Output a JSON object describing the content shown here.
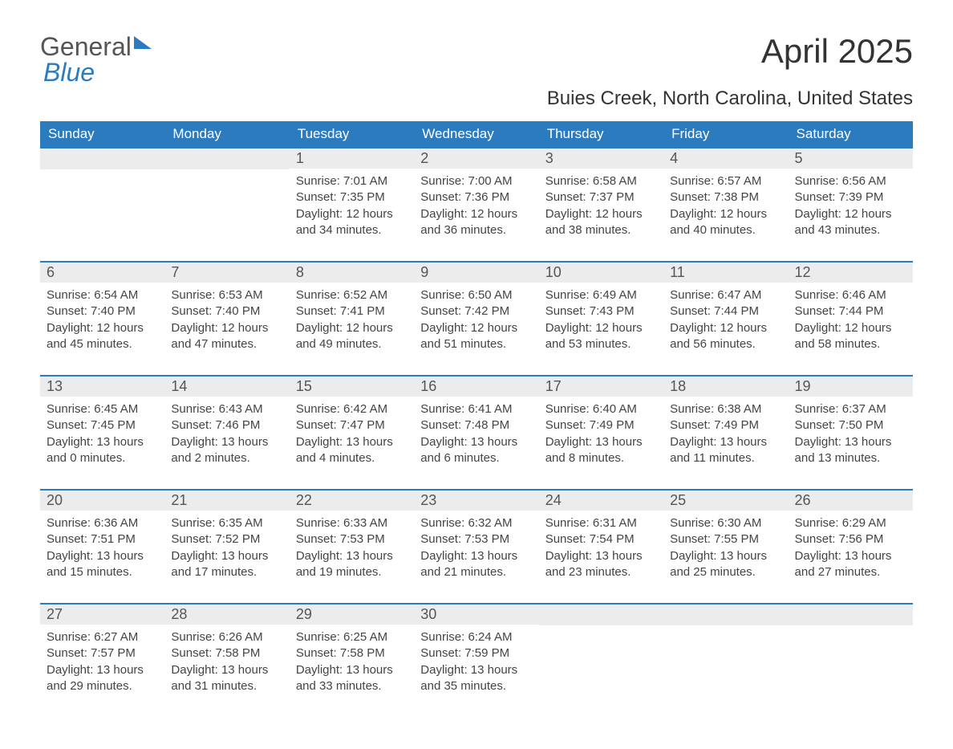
{
  "logo": {
    "text_general": "General",
    "text_blue": "Blue"
  },
  "title": "April 2025",
  "subtitle": "Buies Creek, North Carolina, United States",
  "weekday_headers": [
    "Sunday",
    "Monday",
    "Tuesday",
    "Wednesday",
    "Thursday",
    "Friday",
    "Saturday"
  ],
  "colors": {
    "header_bg": "#2d7bbf",
    "header_text": "#ffffff",
    "daynum_bg": "#ececec",
    "daynum_text": "#555555",
    "content_text": "#444444",
    "border": "#2d7bbf"
  },
  "weeks": [
    [
      {
        "day": "",
        "sunrise": "",
        "sunset": "",
        "daylight": ""
      },
      {
        "day": "",
        "sunrise": "",
        "sunset": "",
        "daylight": ""
      },
      {
        "day": "1",
        "sunrise": "Sunrise: 7:01 AM",
        "sunset": "Sunset: 7:35 PM",
        "daylight": "Daylight: 12 hours and 34 minutes."
      },
      {
        "day": "2",
        "sunrise": "Sunrise: 7:00 AM",
        "sunset": "Sunset: 7:36 PM",
        "daylight": "Daylight: 12 hours and 36 minutes."
      },
      {
        "day": "3",
        "sunrise": "Sunrise: 6:58 AM",
        "sunset": "Sunset: 7:37 PM",
        "daylight": "Daylight: 12 hours and 38 minutes."
      },
      {
        "day": "4",
        "sunrise": "Sunrise: 6:57 AM",
        "sunset": "Sunset: 7:38 PM",
        "daylight": "Daylight: 12 hours and 40 minutes."
      },
      {
        "day": "5",
        "sunrise": "Sunrise: 6:56 AM",
        "sunset": "Sunset: 7:39 PM",
        "daylight": "Daylight: 12 hours and 43 minutes."
      }
    ],
    [
      {
        "day": "6",
        "sunrise": "Sunrise: 6:54 AM",
        "sunset": "Sunset: 7:40 PM",
        "daylight": "Daylight: 12 hours and 45 minutes."
      },
      {
        "day": "7",
        "sunrise": "Sunrise: 6:53 AM",
        "sunset": "Sunset: 7:40 PM",
        "daylight": "Daylight: 12 hours and 47 minutes."
      },
      {
        "day": "8",
        "sunrise": "Sunrise: 6:52 AM",
        "sunset": "Sunset: 7:41 PM",
        "daylight": "Daylight: 12 hours and 49 minutes."
      },
      {
        "day": "9",
        "sunrise": "Sunrise: 6:50 AM",
        "sunset": "Sunset: 7:42 PM",
        "daylight": "Daylight: 12 hours and 51 minutes."
      },
      {
        "day": "10",
        "sunrise": "Sunrise: 6:49 AM",
        "sunset": "Sunset: 7:43 PM",
        "daylight": "Daylight: 12 hours and 53 minutes."
      },
      {
        "day": "11",
        "sunrise": "Sunrise: 6:47 AM",
        "sunset": "Sunset: 7:44 PM",
        "daylight": "Daylight: 12 hours and 56 minutes."
      },
      {
        "day": "12",
        "sunrise": "Sunrise: 6:46 AM",
        "sunset": "Sunset: 7:44 PM",
        "daylight": "Daylight: 12 hours and 58 minutes."
      }
    ],
    [
      {
        "day": "13",
        "sunrise": "Sunrise: 6:45 AM",
        "sunset": "Sunset: 7:45 PM",
        "daylight": "Daylight: 13 hours and 0 minutes."
      },
      {
        "day": "14",
        "sunrise": "Sunrise: 6:43 AM",
        "sunset": "Sunset: 7:46 PM",
        "daylight": "Daylight: 13 hours and 2 minutes."
      },
      {
        "day": "15",
        "sunrise": "Sunrise: 6:42 AM",
        "sunset": "Sunset: 7:47 PM",
        "daylight": "Daylight: 13 hours and 4 minutes."
      },
      {
        "day": "16",
        "sunrise": "Sunrise: 6:41 AM",
        "sunset": "Sunset: 7:48 PM",
        "daylight": "Daylight: 13 hours and 6 minutes."
      },
      {
        "day": "17",
        "sunrise": "Sunrise: 6:40 AM",
        "sunset": "Sunset: 7:49 PM",
        "daylight": "Daylight: 13 hours and 8 minutes."
      },
      {
        "day": "18",
        "sunrise": "Sunrise: 6:38 AM",
        "sunset": "Sunset: 7:49 PM",
        "daylight": "Daylight: 13 hours and 11 minutes."
      },
      {
        "day": "19",
        "sunrise": "Sunrise: 6:37 AM",
        "sunset": "Sunset: 7:50 PM",
        "daylight": "Daylight: 13 hours and 13 minutes."
      }
    ],
    [
      {
        "day": "20",
        "sunrise": "Sunrise: 6:36 AM",
        "sunset": "Sunset: 7:51 PM",
        "daylight": "Daylight: 13 hours and 15 minutes."
      },
      {
        "day": "21",
        "sunrise": "Sunrise: 6:35 AM",
        "sunset": "Sunset: 7:52 PM",
        "daylight": "Daylight: 13 hours and 17 minutes."
      },
      {
        "day": "22",
        "sunrise": "Sunrise: 6:33 AM",
        "sunset": "Sunset: 7:53 PM",
        "daylight": "Daylight: 13 hours and 19 minutes."
      },
      {
        "day": "23",
        "sunrise": "Sunrise: 6:32 AM",
        "sunset": "Sunset: 7:53 PM",
        "daylight": "Daylight: 13 hours and 21 minutes."
      },
      {
        "day": "24",
        "sunrise": "Sunrise: 6:31 AM",
        "sunset": "Sunset: 7:54 PM",
        "daylight": "Daylight: 13 hours and 23 minutes."
      },
      {
        "day": "25",
        "sunrise": "Sunrise: 6:30 AM",
        "sunset": "Sunset: 7:55 PM",
        "daylight": "Daylight: 13 hours and 25 minutes."
      },
      {
        "day": "26",
        "sunrise": "Sunrise: 6:29 AM",
        "sunset": "Sunset: 7:56 PM",
        "daylight": "Daylight: 13 hours and 27 minutes."
      }
    ],
    [
      {
        "day": "27",
        "sunrise": "Sunrise: 6:27 AM",
        "sunset": "Sunset: 7:57 PM",
        "daylight": "Daylight: 13 hours and 29 minutes."
      },
      {
        "day": "28",
        "sunrise": "Sunrise: 6:26 AM",
        "sunset": "Sunset: 7:58 PM",
        "daylight": "Daylight: 13 hours and 31 minutes."
      },
      {
        "day": "29",
        "sunrise": "Sunrise: 6:25 AM",
        "sunset": "Sunset: 7:58 PM",
        "daylight": "Daylight: 13 hours and 33 minutes."
      },
      {
        "day": "30",
        "sunrise": "Sunrise: 6:24 AM",
        "sunset": "Sunset: 7:59 PM",
        "daylight": "Daylight: 13 hours and 35 minutes."
      },
      {
        "day": "",
        "sunrise": "",
        "sunset": "",
        "daylight": ""
      },
      {
        "day": "",
        "sunrise": "",
        "sunset": "",
        "daylight": ""
      },
      {
        "day": "",
        "sunrise": "",
        "sunset": "",
        "daylight": ""
      }
    ]
  ]
}
